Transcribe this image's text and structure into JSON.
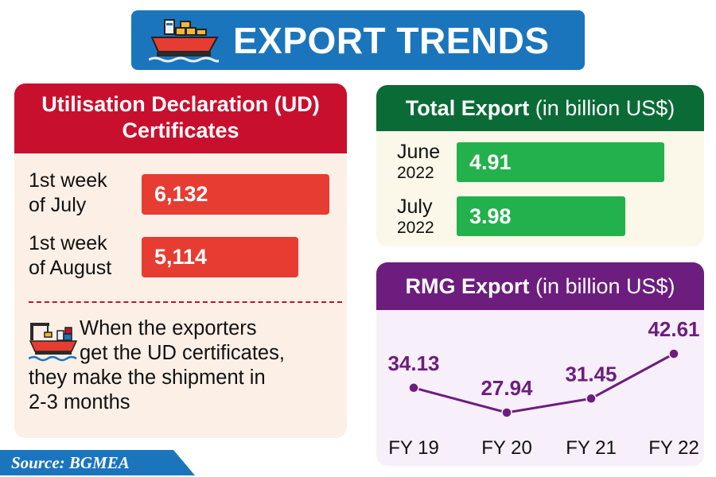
{
  "title": "EXPORT TRENDS",
  "ud": {
    "header_line1": "Utilisation Declaration (UD)",
    "header_line2": "Certificates",
    "rows": [
      {
        "label_line1": "1st week",
        "label_line2": "of July",
        "value": "6,132"
      },
      {
        "label_line1": "1st week",
        "label_line2": "of August",
        "value": "5,114"
      }
    ],
    "note_lines": [
      "When the exporters",
      "get the UD certificates,",
      "they make the shipment in",
      "2-3 months"
    ]
  },
  "total_export": {
    "header_bold": "Total Export",
    "header_rest": " (in billion US$)",
    "rows": [
      {
        "month": "June",
        "year": "2022",
        "value": "4.91"
      },
      {
        "month": "July",
        "year": "2022",
        "value": "3.98"
      }
    ]
  },
  "rmg_export": {
    "header_bold": "RMG Export",
    "header_rest": " (in billion US$)"
  },
  "chart_data": [
    {
      "type": "bar",
      "title": "Utilisation Declaration (UD) Certificates",
      "categories": [
        "1st week of July",
        "1st week of August"
      ],
      "values": [
        6132,
        5114
      ]
    },
    {
      "type": "bar",
      "title": "Total Export (in billion US$)",
      "categories": [
        "June 2022",
        "July 2022"
      ],
      "values": [
        4.91,
        3.98
      ]
    },
    {
      "type": "line",
      "title": "RMG Export (in billion US$)",
      "categories": [
        "FY 19",
        "FY 20",
        "FY 21",
        "FY 22"
      ],
      "values": [
        34.13,
        27.94,
        31.45,
        42.61
      ],
      "value_labels": [
        "34.13",
        "27.94",
        "31.45",
        "42.61"
      ],
      "color": "#6c1d7e"
    }
  ],
  "source": "Source: BGMEA",
  "colors": {
    "banner": "#1a75bc",
    "ud_red": "#c8102e",
    "ud_bar": "#e63c32",
    "total_green": "#0b6b36",
    "bar_green": "#22b14c",
    "rmg_purple": "#6c1d7e"
  }
}
